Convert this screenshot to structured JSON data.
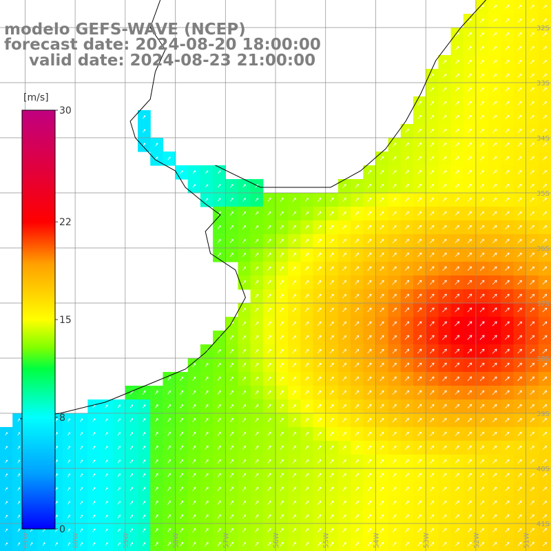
{
  "title": {
    "model": "modelo GEFS-WAVE (NCEP)",
    "forecast": "forecast date: 2024-08-20 18:00:00",
    "valid": "valid date: 2024-08-23 21:00:00"
  },
  "colorbar": {
    "unit": "[m/s]",
    "min": 0,
    "max": 30,
    "tick_labels": [
      "30",
      "22",
      "15",
      "8",
      "0"
    ],
    "tick_values": [
      30,
      22,
      15,
      8,
      0
    ],
    "colors": [
      "#0000ff",
      "#00a0ff",
      "#00ffff",
      "#00ff40",
      "#80ff00",
      "#ffff00",
      "#ffa000",
      "#ff0000",
      "#c00080"
    ]
  },
  "map": {
    "lon_range": [
      -61.5,
      -50.5
    ],
    "lat_range": [
      -41.5,
      -31.5
    ],
    "lon_ticks": [
      -61,
      -60,
      -59,
      -58,
      -57,
      -56,
      -55,
      -54,
      -53,
      -52,
      -51
    ],
    "lon_labels": [
      "61W",
      "60W",
      "59W",
      "58W",
      "57W",
      "56W",
      "55W",
      "54W",
      "53W",
      "52W",
      "51W"
    ],
    "lat_ticks": [
      -32,
      -33,
      -34,
      -35,
      -36,
      -37,
      -38,
      -39,
      -40,
      -41
    ],
    "lat_labels": [
      "32S",
      "33S",
      "34S",
      "35S",
      "36S",
      "37S",
      "38S",
      "39S",
      "40S",
      "41S"
    ],
    "land_color": "#ffffff",
    "coast_color": "#000000",
    "arrow_color": "#ffffff",
    "wind_direction": "towards north-east",
    "max_wind_region": "near 37.5S 52W",
    "max_wind_speed_ms": 23
  }
}
